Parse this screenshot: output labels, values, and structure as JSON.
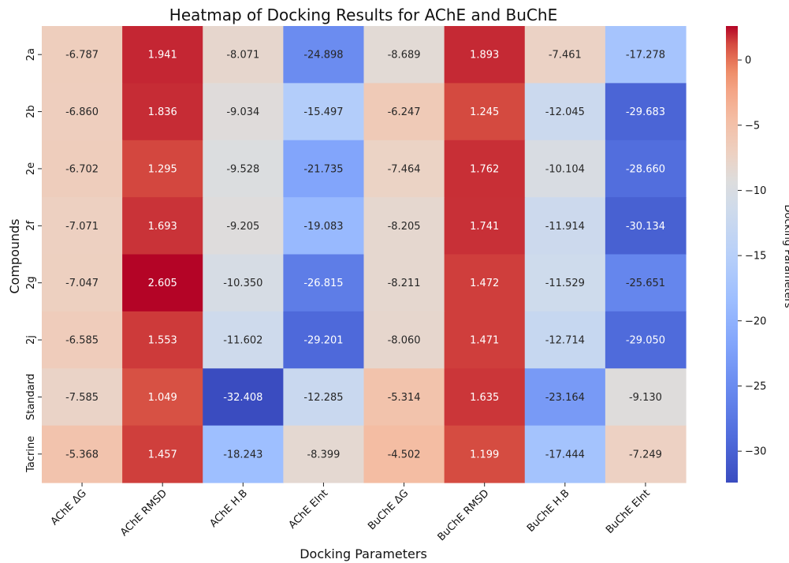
{
  "chart_data": {
    "type": "heatmap",
    "title": "Heatmap of Docking Results for AChE and BuChE",
    "xlabel": "Docking Parameters",
    "ylabel": "Compounds",
    "colorbar_label": "Docking Parameters",
    "colormap": "coolwarm",
    "value_range": [
      -32.408,
      2.605
    ],
    "colorbar_ticks": [
      0,
      -5,
      -10,
      -15,
      -20,
      -25,
      -30
    ],
    "columns": [
      "AChE ΔG",
      "AChE RMSD",
      "AChE H.B",
      "AChE EInt",
      "BuChE ΔG",
      "BuChE RMSD",
      "BuChE H.B",
      "BuChE EInt"
    ],
    "rows": [
      "2a",
      "2b",
      "2e",
      "2f",
      "2g",
      "2j",
      "Standard",
      "Tacrine"
    ],
    "values": [
      [
        -6.787,
        1.941,
        -8.071,
        -24.898,
        -8.689,
        1.893,
        -7.461,
        -17.278
      ],
      [
        -6.86,
        1.836,
        -9.034,
        -15.497,
        -6.247,
        1.245,
        -12.045,
        -29.683
      ],
      [
        -6.702,
        1.295,
        -9.528,
        -21.735,
        -7.464,
        1.762,
        -10.104,
        -28.66
      ],
      [
        -7.071,
        1.693,
        -9.205,
        -19.083,
        -8.205,
        1.741,
        -11.914,
        -30.134
      ],
      [
        -7.047,
        2.605,
        -10.35,
        -26.815,
        -8.211,
        1.472,
        -11.529,
        -25.651
      ],
      [
        -6.585,
        1.553,
        -11.602,
        -29.201,
        -8.06,
        1.471,
        -12.714,
        -29.05
      ],
      [
        -7.585,
        1.049,
        -32.408,
        -12.285,
        -5.314,
        1.635,
        -23.164,
        -9.13
      ],
      [
        -5.368,
        1.457,
        -18.243,
        -8.399,
        -4.502,
        1.199,
        -17.444,
        -7.249
      ]
    ],
    "labels": [
      [
        "-6.787",
        "1.941",
        "-8.071",
        "-24.898",
        "-8.689",
        "1.893",
        "-7.461",
        "-17.278"
      ],
      [
        "-6.860",
        "1.836",
        "-9.034",
        "-15.497",
        "-6.247",
        "1.245",
        "-12.045",
        "-29.683"
      ],
      [
        "-6.702",
        "1.295",
        "-9.528",
        "-21.735",
        "-7.464",
        "1.762",
        "-10.104",
        "-28.660"
      ],
      [
        "-7.071",
        "1.693",
        "-9.205",
        "-19.083",
        "-8.205",
        "1.741",
        "-11.914",
        "-30.134"
      ],
      [
        "-7.047",
        "2.605",
        "-10.350",
        "-26.815",
        "-8.211",
        "1.472",
        "-11.529",
        "-25.651"
      ],
      [
        "-6.585",
        "1.553",
        "-11.602",
        "-29.201",
        "-8.060",
        "1.471",
        "-12.714",
        "-29.050"
      ],
      [
        "-7.585",
        "1.049",
        "-32.408",
        "-12.285",
        "-5.314",
        "1.635",
        "-23.164",
        "-9.130"
      ],
      [
        "-5.368",
        "1.457",
        "-18.243",
        "-8.399",
        "-4.502",
        "1.199",
        "-17.444",
        "-7.249"
      ]
    ]
  }
}
